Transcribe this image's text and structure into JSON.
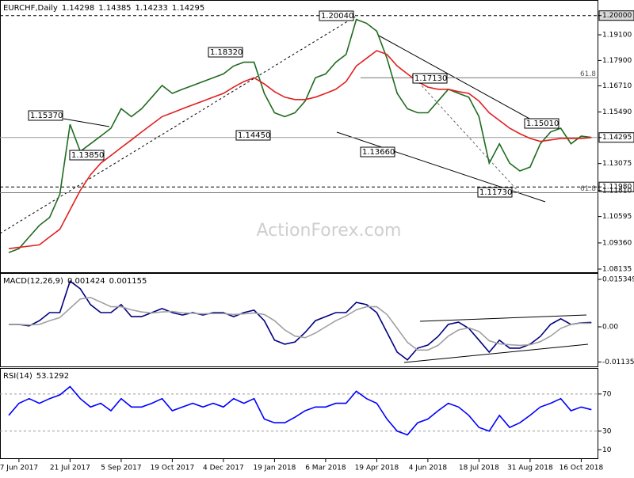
{
  "chart_data": [
    {
      "type": "line",
      "title": "EURCHF,Daily",
      "header_values": [
        1.14298,
        1.14385,
        1.14233,
        1.14295
      ],
      "watermark": "ActionForex.com",
      "categories": [
        null,
        "7 Jun 2017",
        null,
        null,
        null,
        null,
        "21 Jul 2017",
        null,
        null,
        null,
        null,
        "5 Sep 2017",
        null,
        null,
        null,
        null,
        "19 Oct 2017",
        null,
        null,
        null,
        null,
        "4 Dec 2017",
        null,
        null,
        null,
        null,
        "19 Jan 2018",
        null,
        null,
        null,
        null,
        "6 Mar 2018",
        null,
        null,
        null,
        null,
        "19 Apr 2018",
        null,
        null,
        null,
        null,
        "4 Jun 2018",
        null,
        null,
        null,
        null,
        "18 Jul 2018",
        null,
        null,
        null,
        null,
        "31 Aug 2018",
        null,
        null,
        null,
        null,
        "16 Oct 2018",
        null
      ],
      "series": [
        {
          "color": "#1f6b1f",
          "values": [
            1.0891,
            1.0909,
            1.0964,
            1.1018,
            1.1055,
            1.1164,
            1.1491,
            1.1364,
            1.14,
            1.1436,
            1.1473,
            1.1564,
            1.1527,
            1.1564,
            1.1618,
            1.1673,
            1.1636,
            1.1655,
            1.1673,
            1.1691,
            1.1709,
            1.1727,
            1.1764,
            1.1782,
            1.1782,
            1.1636,
            1.1545,
            1.1527,
            1.1545,
            1.16,
            1.1709,
            1.1727,
            1.1782,
            1.1818,
            1.1982,
            1.1964,
            1.1927,
            1.18,
            1.1636,
            1.1564,
            1.1545,
            1.1545,
            1.16,
            1.1655,
            1.1636,
            1.1618,
            1.1527,
            1.1309,
            1.14,
            1.1309,
            1.1273,
            1.1291,
            1.14,
            1.1455,
            1.1473,
            1.14,
            1.1436,
            1.14295
          ]
        },
        {
          "color": "#e02020",
          "values": [
            1.0909,
            1.0915,
            1.0921,
            1.0927,
            1.0964,
            1.1,
            1.1091,
            1.1182,
            1.1255,
            1.1309,
            1.1345,
            1.1382,
            1.1418,
            1.1455,
            1.1491,
            1.1527,
            1.1545,
            1.1564,
            1.1582,
            1.16,
            1.1618,
            1.1636,
            1.1665,
            1.1691,
            1.1709,
            1.168,
            1.1644,
            1.1618,
            1.1607,
            1.1607,
            1.1618,
            1.1636,
            1.1655,
            1.1691,
            1.1764,
            1.18,
            1.1836,
            1.1818,
            1.1764,
            1.1727,
            1.1691,
            1.1665,
            1.1655,
            1.1655,
            1.1644,
            1.1636,
            1.16,
            1.1545,
            1.1509,
            1.1473,
            1.1447,
            1.1425,
            1.1411,
            1.1418,
            1.1425,
            1.1425,
            1.1425,
            1.1429
          ]
        }
      ],
      "ylim": [
        1.0795,
        1.2073
      ],
      "yticks": [
        {
          "value": 1.2,
          "label": "1.20000"
        },
        {
          "value": 1.191,
          "label": "1.19100"
        },
        {
          "value": 1.179,
          "label": "1.17900"
        },
        {
          "value": 1.1671,
          "label": "1.16710"
        },
        {
          "value": 1.1549,
          "label": "1.15490"
        },
        1.14295,
        1.13075,
        {
          "value": 1.1198,
          "label": "1.11980"
        },
        {
          "value": 1.1181,
          "label": "1.11810"
        },
        1.10595,
        {
          "value": 1.0936,
          "label": "1.09360"
        },
        1.08135
      ],
      "fib_levels": [
        {
          "value": 1.1709,
          "label": "61.8"
        },
        {
          "value": 1.1171,
          "label": "61.8"
        }
      ],
      "annotations": [
        "1.20040",
        "1.18320",
        "1.15370",
        "1.13850",
        "1.14450",
        "1.13660",
        "1.17130",
        "1.15010",
        "1.11730"
      ]
    },
    {
      "type": "line",
      "title": "MACD(12,26,9)",
      "header_values": [
        0.001424,
        0.001155
      ],
      "series": [
        {
          "color": "#00007f",
          "values": [
            0.0008,
            0.0008,
            0.0003,
            0.002,
            0.0046,
            0.0046,
            0.0148,
            0.0123,
            0.0072,
            0.0046,
            0.0046,
            0.0072,
            0.0033,
            0.0033,
            0.0046,
            0.0059,
            0.0046,
            0.0038,
            0.0046,
            0.0038,
            0.0046,
            0.0046,
            0.0033,
            0.0046,
            0.0054,
            0.002,
            -0.0043,
            -0.0056,
            -0.0049,
            -0.0018,
            0.002,
            0.0033,
            0.0046,
            0.0046,
            0.0079,
            0.0072,
            0.0046,
            -0.0018,
            -0.0082,
            -0.0107,
            -0.0069,
            -0.0059,
            -0.0031,
            0.0008,
            0.0015,
            -0.0005,
            -0.0043,
            -0.0082,
            -0.0043,
            -0.0069,
            -0.0069,
            -0.0056,
            -0.0031,
            0.0008,
            0.0026,
            0.0008,
            0.0013,
            0.001424
          ]
        },
        {
          "color": "#a0a0a0",
          "values": [
            0.0008,
            0.0008,
            0.0006,
            0.0008,
            0.002,
            0.003,
            0.006,
            0.009,
            0.0095,
            0.008,
            0.0065,
            0.0065,
            0.0055,
            0.0048,
            0.0045,
            0.0048,
            0.005,
            0.0045,
            0.0044,
            0.0042,
            0.0043,
            0.0043,
            0.004,
            0.0042,
            0.0045,
            0.004,
            0.002,
            -0.001,
            -0.003,
            -0.0035,
            -0.002,
            0,
            0.002,
            0.0035,
            0.0055,
            0.0065,
            0.0065,
            0.004,
            -0.0005,
            -0.005,
            -0.0075,
            -0.0075,
            -0.006,
            -0.003,
            -0.001,
            -0.0003,
            -0.0015,
            -0.0045,
            -0.0055,
            -0.0058,
            -0.006,
            -0.0058,
            -0.0048,
            -0.003,
            -0.0005,
            0.0008,
            0.0012,
            0.001155
          ]
        }
      ],
      "ylim": [
        -0.0128,
        0.0174
      ],
      "yticks": [
        0.015349,
        {
          "value": 0,
          "label": "0.00"
        },
        -0.011352
      ]
    },
    {
      "type": "line",
      "title": "RSI(14)",
      "header_values": [
        53.1292
      ],
      "series": [
        {
          "color": "#0000ff",
          "values": [
            47,
            60,
            65,
            60,
            65,
            69,
            78,
            65,
            56,
            60,
            52,
            65,
            56,
            56,
            60,
            65,
            52,
            56,
            60,
            56,
            60,
            56,
            65,
            60,
            65,
            43,
            39,
            39,
            45,
            52,
            56,
            56,
            60,
            60,
            73,
            65,
            60,
            43,
            30,
            26,
            39,
            43,
            52,
            60,
            56,
            47,
            34,
            30,
            47,
            34,
            39,
            47,
            56,
            60,
            65,
            52,
            56,
            53.1292
          ]
        }
      ],
      "ylim": [
        0,
        98
      ],
      "yticks": [
        70,
        30,
        10
      ],
      "levels": [
        70,
        30
      ]
    }
  ]
}
